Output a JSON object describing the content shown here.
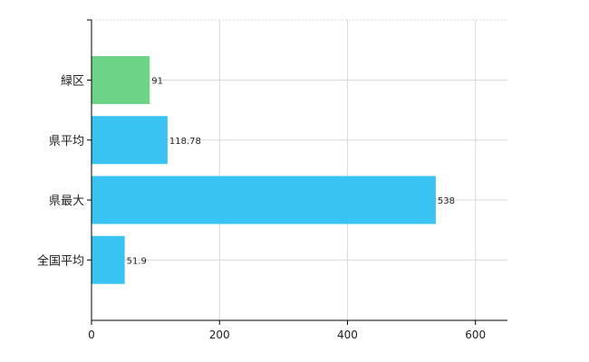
{
  "chart_data": {
    "type": "bar",
    "orientation": "horizontal",
    "title": "",
    "xlabel": "",
    "ylabel": "",
    "xlim": [
      0,
      650
    ],
    "x_ticks": [
      0,
      200,
      400,
      600
    ],
    "grid": true,
    "categories": [
      "緑区",
      "県平均",
      "県最大",
      "全国平均"
    ],
    "values": [
      91,
      118.78,
      538,
      51.9
    ],
    "data_labels": [
      "91",
      "118.78",
      "538",
      "51.9"
    ],
    "bar_colors": [
      "#6dd389",
      "#38c3f2",
      "#38c3f2",
      "#38c3f2"
    ]
  }
}
